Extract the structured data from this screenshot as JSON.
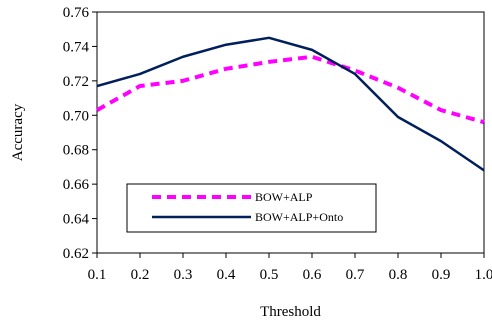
{
  "chart_data": {
    "type": "line",
    "xlabel": "Threshold",
    "ylabel": "Accuracy",
    "x": [
      0.1,
      0.2,
      0.3,
      0.4,
      0.5,
      0.6,
      0.7,
      0.8,
      0.9,
      1.0
    ],
    "x_ticks": [
      "0.1",
      "0.2",
      "0.3",
      "0.4",
      "0.5",
      "0.6",
      "0.7",
      "0.8",
      "0.9",
      "1.0"
    ],
    "y_ticks": [
      "0.62",
      "0.64",
      "0.66",
      "0.68",
      "0.70",
      "0.72",
      "0.74",
      "0.76"
    ],
    "xlim": [
      0.1,
      1.0
    ],
    "ylim": [
      0.62,
      0.76
    ],
    "grid": false,
    "legend_position": "lower-left",
    "series": [
      {
        "name": "BOW+ALP",
        "color": "#ff00ff",
        "style": "dashed",
        "values": [
          0.703,
          0.717,
          0.72,
          0.727,
          0.731,
          0.734,
          0.726,
          0.716,
          0.703,
          0.696
        ]
      },
      {
        "name": "BOW+ALP+Onto",
        "color": "#001f5c",
        "style": "solid",
        "values": [
          0.717,
          0.724,
          0.734,
          0.741,
          0.745,
          0.738,
          0.724,
          0.699,
          0.685,
          0.668
        ]
      }
    ]
  }
}
